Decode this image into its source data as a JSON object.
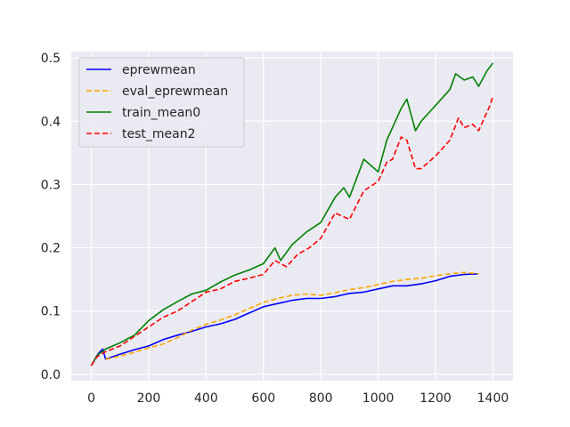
{
  "chart_data": {
    "type": "line",
    "title": "",
    "xlabel": "",
    "ylabel": "",
    "xlim": [
      -70,
      1470
    ],
    "ylim": [
      -0.01,
      0.51
    ],
    "x_ticks": [
      0,
      200,
      400,
      600,
      800,
      1000,
      1200,
      1400
    ],
    "y_ticks": [
      0.0,
      0.1,
      0.2,
      0.3,
      0.4,
      0.5
    ],
    "x_tick_labels": [
      "0",
      "200",
      "400",
      "600",
      "800",
      "1000",
      "1200",
      "1400"
    ],
    "y_tick_labels": [
      "0.0",
      "0.1",
      "0.2",
      "0.3",
      "0.4",
      "0.5"
    ],
    "grid": true,
    "background": "#eaeaf2",
    "legend_position": "top-left",
    "series": [
      {
        "name": "eprewmean",
        "color": "#0000ff",
        "dash": "solid",
        "points": [
          [
            0,
            0.014
          ],
          [
            10,
            0.022
          ],
          [
            20,
            0.03
          ],
          [
            30,
            0.036
          ],
          [
            40,
            0.04
          ],
          [
            50,
            0.024
          ],
          [
            100,
            0.032
          ],
          [
            150,
            0.039
          ],
          [
            200,
            0.045
          ],
          [
            250,
            0.055
          ],
          [
            300,
            0.062
          ],
          [
            350,
            0.068
          ],
          [
            400,
            0.075
          ],
          [
            450,
            0.08
          ],
          [
            500,
            0.087
          ],
          [
            550,
            0.097
          ],
          [
            600,
            0.107
          ],
          [
            650,
            0.112
          ],
          [
            700,
            0.117
          ],
          [
            750,
            0.12
          ],
          [
            800,
            0.12
          ],
          [
            850,
            0.123
          ],
          [
            900,
            0.128
          ],
          [
            950,
            0.13
          ],
          [
            1000,
            0.135
          ],
          [
            1050,
            0.14
          ],
          [
            1100,
            0.14
          ],
          [
            1150,
            0.143
          ],
          [
            1200,
            0.148
          ],
          [
            1250,
            0.155
          ],
          [
            1300,
            0.158
          ],
          [
            1350,
            0.159
          ]
        ]
      },
      {
        "name": "eval_eprewmean",
        "color": "#ffa500",
        "dash": "dashed",
        "points": [
          [
            50,
            0.024
          ],
          [
            100,
            0.029
          ],
          [
            150,
            0.035
          ],
          [
            200,
            0.042
          ],
          [
            250,
            0.048
          ],
          [
            300,
            0.058
          ],
          [
            350,
            0.07
          ],
          [
            400,
            0.079
          ],
          [
            450,
            0.086
          ],
          [
            500,
            0.094
          ],
          [
            550,
            0.104
          ],
          [
            600,
            0.114
          ],
          [
            650,
            0.12
          ],
          [
            700,
            0.125
          ],
          [
            750,
            0.127
          ],
          [
            800,
            0.125
          ],
          [
            850,
            0.129
          ],
          [
            900,
            0.134
          ],
          [
            950,
            0.137
          ],
          [
            1000,
            0.142
          ],
          [
            1050,
            0.147
          ],
          [
            1100,
            0.15
          ],
          [
            1150,
            0.152
          ],
          [
            1200,
            0.156
          ],
          [
            1250,
            0.159
          ],
          [
            1300,
            0.161
          ],
          [
            1350,
            0.159
          ]
        ]
      },
      {
        "name": "train_mean0",
        "color": "#008000",
        "dash": "solid",
        "points": [
          [
            0,
            0.014
          ],
          [
            20,
            0.03
          ],
          [
            50,
            0.04
          ],
          [
            100,
            0.05
          ],
          [
            150,
            0.062
          ],
          [
            200,
            0.085
          ],
          [
            250,
            0.102
          ],
          [
            300,
            0.115
          ],
          [
            350,
            0.127
          ],
          [
            400,
            0.133
          ],
          [
            450,
            0.146
          ],
          [
            500,
            0.157
          ],
          [
            550,
            0.165
          ],
          [
            600,
            0.175
          ],
          [
            640,
            0.2
          ],
          [
            660,
            0.18
          ],
          [
            700,
            0.205
          ],
          [
            750,
            0.225
          ],
          [
            800,
            0.24
          ],
          [
            850,
            0.28
          ],
          [
            880,
            0.295
          ],
          [
            900,
            0.28
          ],
          [
            950,
            0.34
          ],
          [
            1000,
            0.32
          ],
          [
            1030,
            0.37
          ],
          [
            1050,
            0.39
          ],
          [
            1080,
            0.42
          ],
          [
            1100,
            0.435
          ],
          [
            1130,
            0.385
          ],
          [
            1150,
            0.4
          ],
          [
            1200,
            0.425
          ],
          [
            1230,
            0.44
          ],
          [
            1250,
            0.45
          ],
          [
            1270,
            0.475
          ],
          [
            1300,
            0.465
          ],
          [
            1330,
            0.47
          ],
          [
            1350,
            0.455
          ],
          [
            1380,
            0.48
          ],
          [
            1400,
            0.492
          ]
        ]
      },
      {
        "name": "test_mean2",
        "color": "#ff0000",
        "dash": "dashed",
        "points": [
          [
            0,
            0.014
          ],
          [
            20,
            0.028
          ],
          [
            50,
            0.036
          ],
          [
            100,
            0.045
          ],
          [
            150,
            0.06
          ],
          [
            200,
            0.075
          ],
          [
            250,
            0.09
          ],
          [
            300,
            0.1
          ],
          [
            350,
            0.115
          ],
          [
            400,
            0.13
          ],
          [
            450,
            0.135
          ],
          [
            500,
            0.147
          ],
          [
            550,
            0.152
          ],
          [
            600,
            0.158
          ],
          [
            640,
            0.18
          ],
          [
            680,
            0.17
          ],
          [
            720,
            0.19
          ],
          [
            760,
            0.2
          ],
          [
            800,
            0.215
          ],
          [
            850,
            0.255
          ],
          [
            900,
            0.245
          ],
          [
            950,
            0.29
          ],
          [
            1000,
            0.305
          ],
          [
            1030,
            0.335
          ],
          [
            1050,
            0.34
          ],
          [
            1080,
            0.375
          ],
          [
            1100,
            0.37
          ],
          [
            1130,
            0.325
          ],
          [
            1150,
            0.325
          ],
          [
            1200,
            0.345
          ],
          [
            1230,
            0.36
          ],
          [
            1250,
            0.37
          ],
          [
            1280,
            0.405
          ],
          [
            1300,
            0.39
          ],
          [
            1330,
            0.395
          ],
          [
            1350,
            0.385
          ],
          [
            1370,
            0.405
          ],
          [
            1390,
            0.425
          ],
          [
            1400,
            0.44
          ]
        ]
      }
    ]
  }
}
